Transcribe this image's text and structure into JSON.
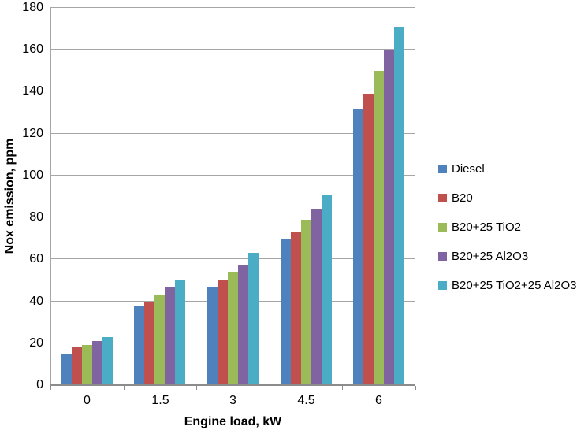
{
  "figure": {
    "background": "#ffffff",
    "grid_color": "#a6a6a6",
    "axis_color": "#8c8c8c"
  },
  "chart_data": {
    "type": "bar",
    "title": "",
    "xlabel": "Engine load, kW",
    "ylabel": "Nox emission, ppm",
    "categories": [
      "0",
      "1.5",
      "3",
      "4.5",
      "6"
    ],
    "series": [
      {
        "name": "Diesel",
        "color": "#4F81BD",
        "values": [
          15,
          38,
          47,
          70,
          132
        ]
      },
      {
        "name": "B20",
        "color": "#C0504D",
        "values": [
          18,
          40,
          50,
          73,
          139
        ]
      },
      {
        "name": "B20+25 TiO2",
        "color": "#9BBB59",
        "values": [
          19,
          43,
          54,
          79,
          150
        ]
      },
      {
        "name": "B20+25 Al2O3",
        "color": "#8064A2",
        "values": [
          21,
          47,
          57,
          84,
          160
        ]
      },
      {
        "name": "B20+25 TiO2+25 Al2O3",
        "color": "#4BACC6",
        "values": [
          23,
          50,
          63,
          91,
          171
        ]
      }
    ],
    "ylim": [
      0,
      180
    ],
    "ytick_step": 20,
    "yticks": [
      "0",
      "20",
      "40",
      "60",
      "80",
      "100",
      "120",
      "140",
      "160",
      "180"
    ],
    "grid": "horizontal",
    "legend_position": "right"
  }
}
